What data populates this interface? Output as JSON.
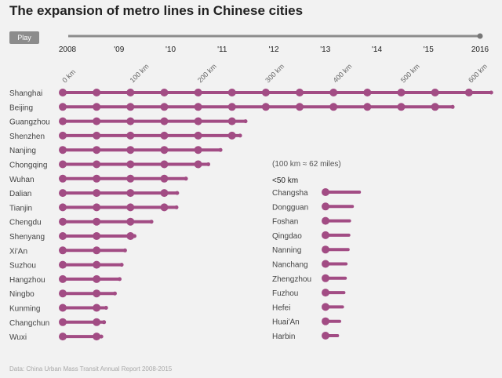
{
  "title": "The expansion of metro lines in Chinese cities",
  "play_label": "Play",
  "source": "Data: China Urban Mass Transit Annual Report 2008-2015",
  "colors": {
    "line": "#a24c84",
    "dot": "#a24c84",
    "timeline": "#8c8c8c",
    "text": "#444444",
    "axis_label": "#666666"
  },
  "chart_data": {
    "type": "bar",
    "timeline": {
      "start": "2008",
      "end": "2016",
      "labels": [
        "2008",
        "'09",
        "'10",
        "'11",
        "'12",
        "'13",
        "'14",
        "'15",
        "2016"
      ]
    },
    "km_axis": {
      "min": 0,
      "max": 600,
      "unit_note": "(100 km ≈ 62 miles)",
      "ticks": [
        {
          "value": 0,
          "label": "0 km"
        },
        {
          "value": 100,
          "label": "100 km"
        },
        {
          "value": 200,
          "label": "200 km"
        },
        {
          "value": 300,
          "label": "300 km"
        },
        {
          "value": 400,
          "label": "400 km"
        },
        {
          "value": 500,
          "label": "500 km"
        },
        {
          "value": 600,
          "label": "600 km"
        }
      ]
    },
    "cities": [
      {
        "name": "Shanghai",
        "km": 633
      },
      {
        "name": "Beijing",
        "km": 576
      },
      {
        "name": "Guangzhou",
        "km": 270
      },
      {
        "name": "Shenzhen",
        "km": 262
      },
      {
        "name": "Nanjing",
        "km": 233
      },
      {
        "name": "Chongqing",
        "km": 215
      },
      {
        "name": "Wuhan",
        "km": 182
      },
      {
        "name": "Dalian",
        "km": 169
      },
      {
        "name": "Tianjin",
        "km": 168
      },
      {
        "name": "Chengdu",
        "km": 131
      },
      {
        "name": "Shenyang",
        "km": 106
      },
      {
        "name": "Xi'An",
        "km": 92
      },
      {
        "name": "Suzhou",
        "km": 87
      },
      {
        "name": "Hangzhou",
        "km": 84
      },
      {
        "name": "Ningbo",
        "km": 77
      },
      {
        "name": "Kunming",
        "km": 64
      },
      {
        "name": "Changchun",
        "km": 61
      },
      {
        "name": "Wuxi",
        "km": 57
      }
    ],
    "small_group_label": "<50 km",
    "small_cities": [
      {
        "name": "Changsha",
        "km": 48
      },
      {
        "name": "Dongguan",
        "km": 38
      },
      {
        "name": "Foshan",
        "km": 34
      },
      {
        "name": "Qingdao",
        "km": 33
      },
      {
        "name": "Nanning",
        "km": 32
      },
      {
        "name": "Nanchang",
        "km": 29
      },
      {
        "name": "Zhengzhou",
        "km": 28
      },
      {
        "name": "Fuzhou",
        "km": 26
      },
      {
        "name": "Hefei",
        "km": 24
      },
      {
        "name": "Huai'An",
        "km": 20
      },
      {
        "name": "Harbin",
        "km": 17
      }
    ]
  }
}
